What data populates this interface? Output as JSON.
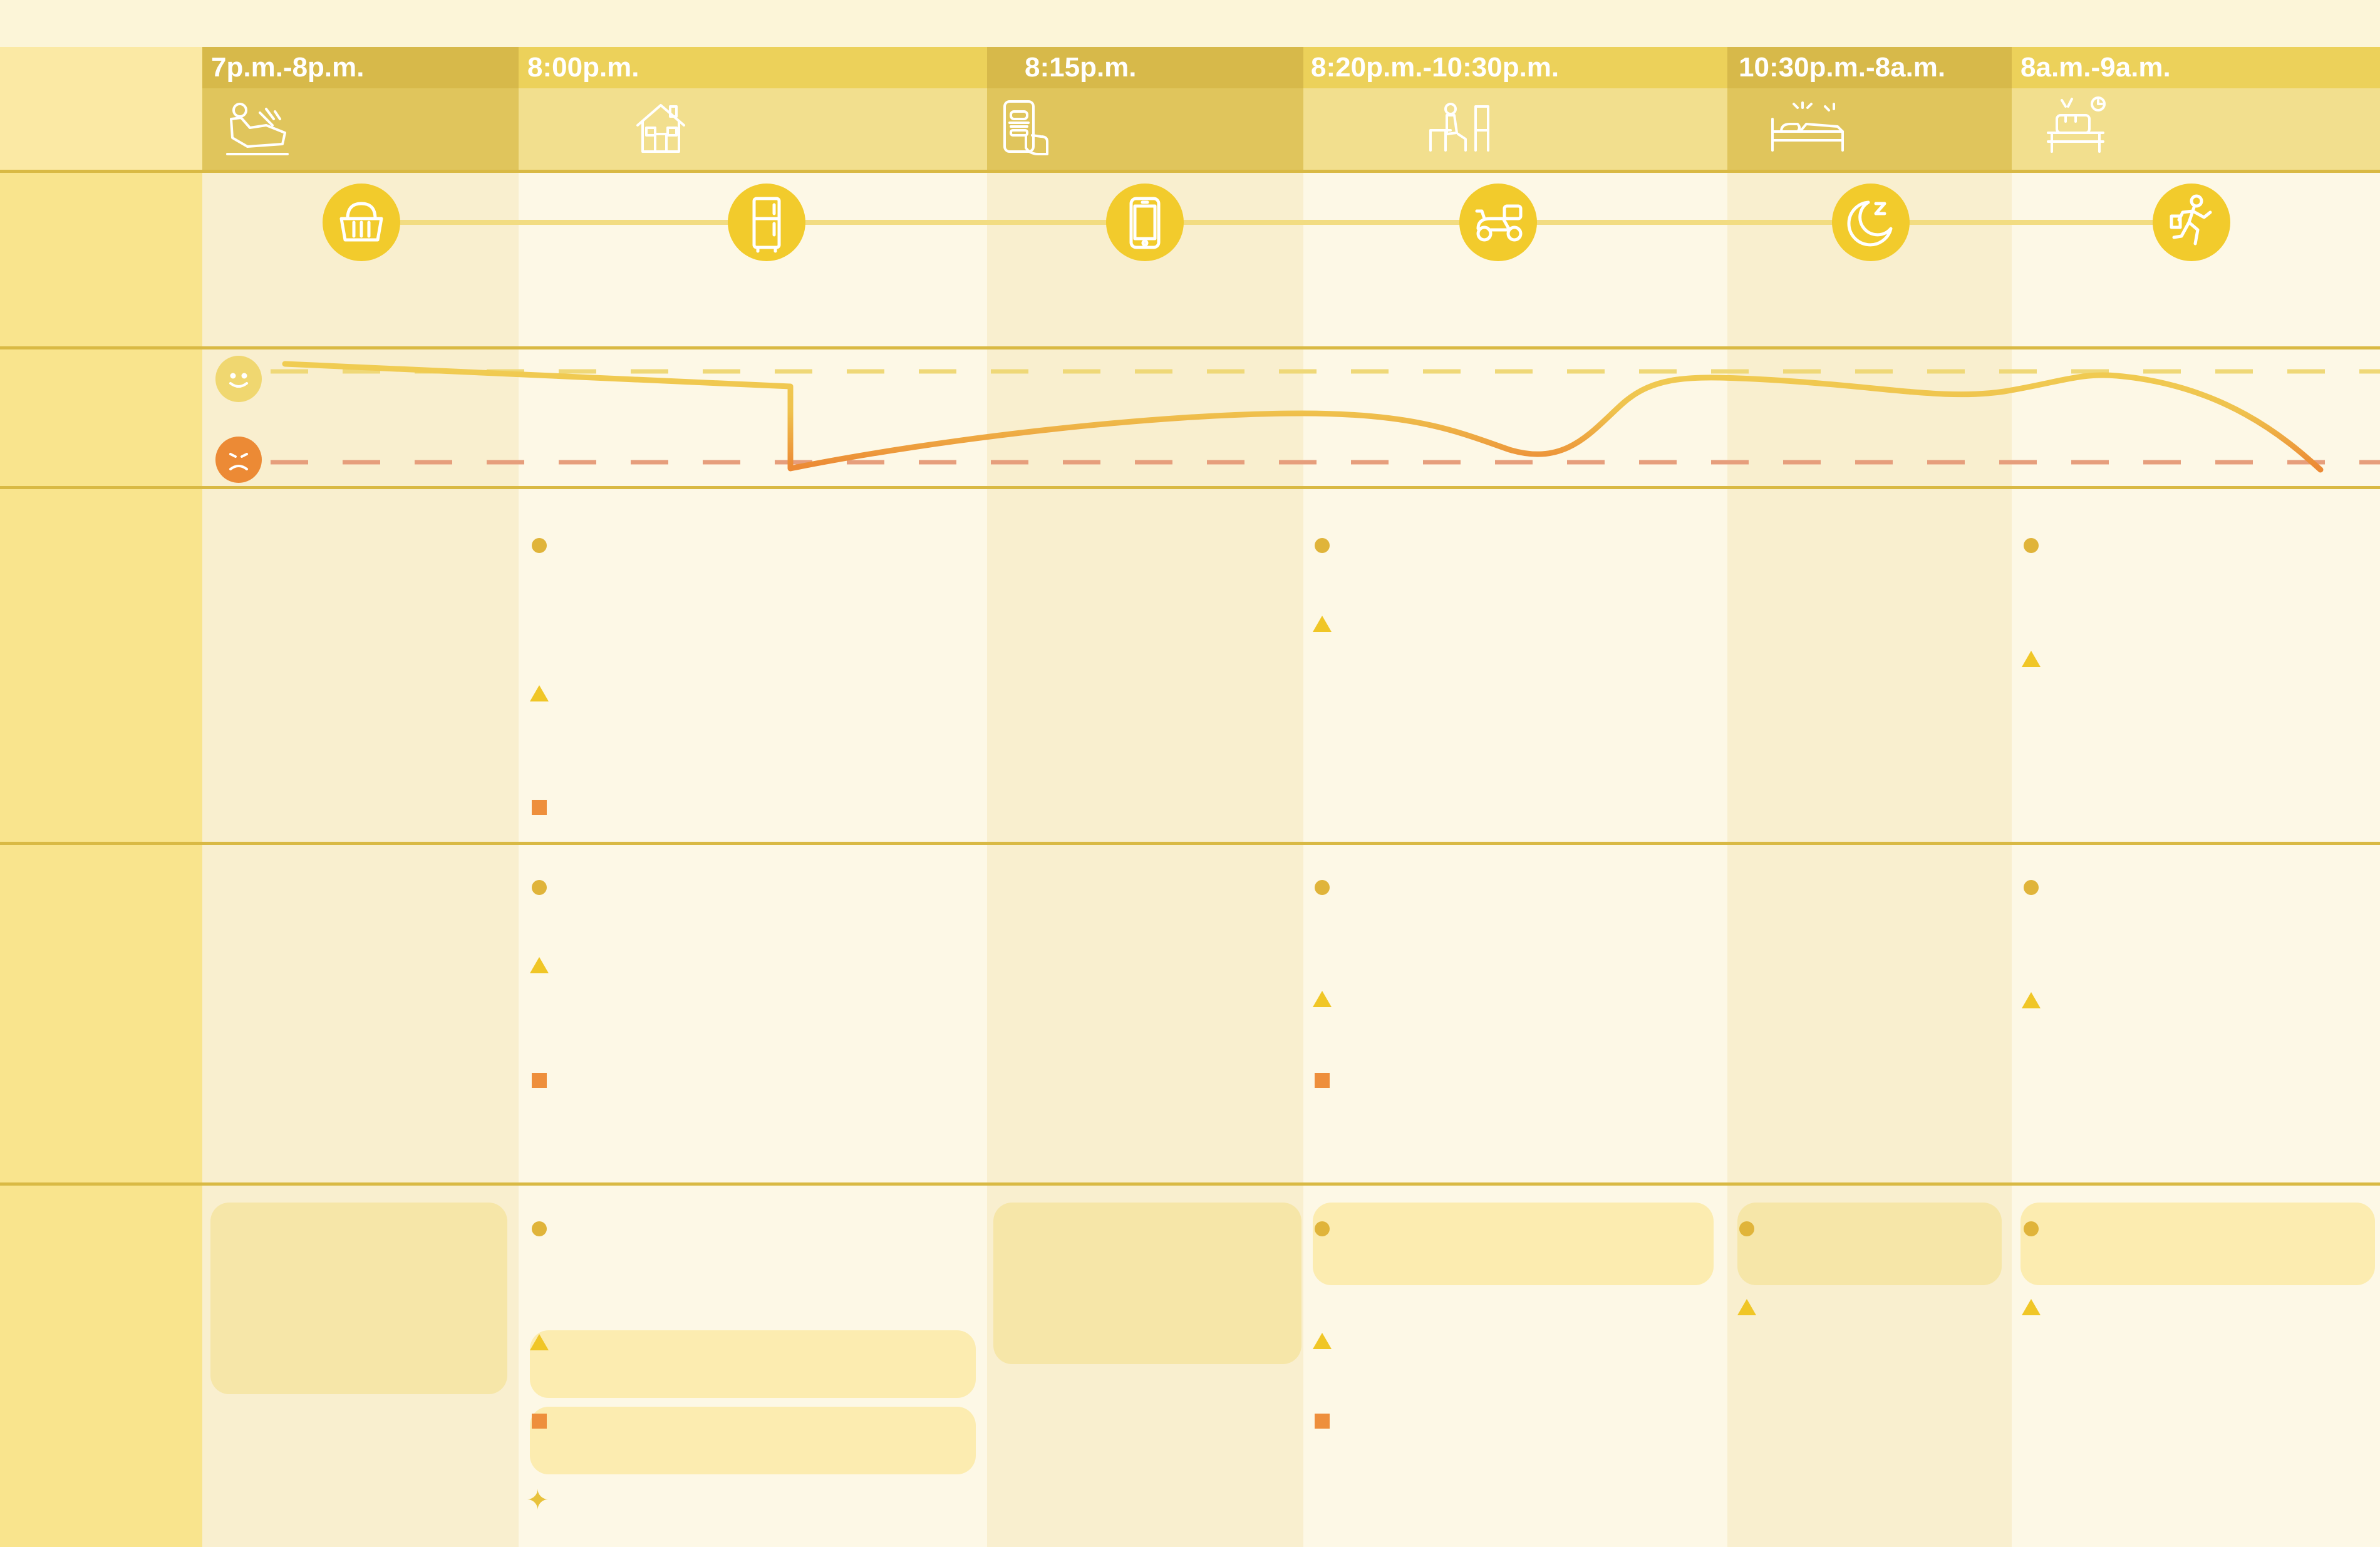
{
  "colors": {
    "header_dark": "#d7b94a",
    "header_light": "#ecd15a",
    "row_label_column": "#f9e48d",
    "accent": "#f2cb2c",
    "happy_line": "#efd878",
    "sad_line": "#e69e7c",
    "curve_good": "#f0cc52",
    "curve_bad": "#ec8a35"
  },
  "stages": [
    {
      "time": "7p.m.-8p.m.",
      "header_icon": "relaxing-person-icon",
      "touchpoint_icon": "basket-icon"
    },
    {
      "time": "8:00p.m.",
      "header_icon": "house-icon",
      "touchpoint_icon": "refrigerator-icon"
    },
    {
      "time": "8:15p.m.",
      "header_icon": "phone-order-icon",
      "touchpoint_icon": "smartphone-icon"
    },
    {
      "time": "8:20p.m.-10:30p.m.",
      "header_icon": "waiting-at-table-icon",
      "touchpoint_icon": "delivery-scooter-icon"
    },
    {
      "time": "10:30p.m.-8a.m.",
      "header_icon": "sleeping-in-bed-icon",
      "touchpoint_icon": "moon-sleep-icon"
    },
    {
      "time": "8a.m.-9a.m.",
      "header_icon": "breakfast-table-icon",
      "touchpoint_icon": "running-late-icon"
    }
  ],
  "emotion_legend": {
    "happy_icon": "happy-face-icon",
    "sad_icon": "sad-face-icon"
  }
}
